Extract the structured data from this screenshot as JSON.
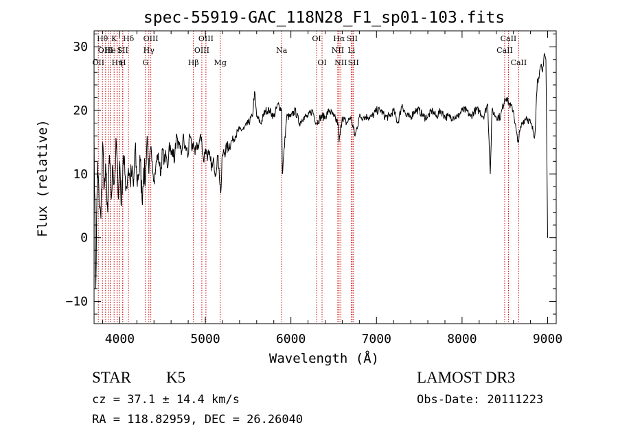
{
  "chart_data": {
    "type": "line",
    "title": "spec-55919-GAC_118N28_F1_sp01-103.fits",
    "xlabel": "Wavelength (Å)",
    "ylabel": "Flux (relative)",
    "xlim": [
      3700,
      9100
    ],
    "ylim": [
      -13.5,
      32.5
    ],
    "x_ticks": [
      4000,
      5000,
      6000,
      7000,
      8000,
      9000
    ],
    "x_tick_labels": [
      "4000",
      "5000",
      "6000",
      "7000",
      "8000",
      "9000"
    ],
    "y_ticks": [
      -10,
      0,
      10,
      20,
      30
    ],
    "y_tick_labels": [
      "−10",
      "0",
      "10",
      "20",
      "30"
    ],
    "series": [
      {
        "name": "flux",
        "x": [
          3700,
          3720,
          3740,
          3760,
          3780,
          3800,
          3820,
          3840,
          3860,
          3880,
          3900,
          3920,
          3940,
          3960,
          3980,
          4000,
          4020,
          4040,
          4060,
          4080,
          4100,
          4120,
          4140,
          4160,
          4180,
          4200,
          4220,
          4240,
          4260,
          4280,
          4300,
          4320,
          4340,
          4360,
          4380,
          4400,
          4420,
          4440,
          4460,
          4480,
          4500,
          4520,
          4540,
          4560,
          4580,
          4600,
          4620,
          4640,
          4660,
          4680,
          4700,
          4720,
          4740,
          4760,
          4780,
          4800,
          4820,
          4840,
          4860,
          4880,
          4900,
          4920,
          4940,
          4960,
          4980,
          5000,
          5020,
          5040,
          5060,
          5080,
          5100,
          5120,
          5140,
          5160,
          5180,
          5200,
          5250,
          5300,
          5350,
          5400,
          5450,
          5500,
          5550,
          5575,
          5600,
          5650,
          5700,
          5750,
          5800,
          5850,
          5892,
          5900,
          5950,
          6000,
          6050,
          6100,
          6150,
          6200,
          6250,
          6300,
          6350,
          6400,
          6450,
          6500,
          6550,
          6563,
          6600,
          6650,
          6700,
          6750,
          6800,
          6850,
          6900,
          6950,
          7000,
          7050,
          7100,
          7150,
          7200,
          7250,
          7300,
          7350,
          7400,
          7450,
          7500,
          7550,
          7600,
          7650,
          7700,
          7750,
          7800,
          7850,
          7900,
          7950,
          8000,
          8050,
          8100,
          8150,
          8200,
          8250,
          8300,
          8330,
          8350,
          8400,
          8450,
          8500,
          8520,
          8550,
          8600,
          8650,
          8700,
          8750,
          8800,
          8850,
          8880,
          8900,
          8920,
          8940,
          8960,
          8980,
          9000
        ],
        "values": [
          16,
          -8,
          12,
          5,
          3,
          15,
          8,
          10,
          4,
          13,
          6,
          11,
          9,
          15,
          7,
          12,
          5,
          13,
          10,
          8,
          11,
          9,
          10,
          8,
          14,
          9,
          10,
          12,
          6,
          11,
          9,
          16,
          10,
          14,
          12,
          9,
          11,
          13,
          12,
          10,
          14,
          12,
          13,
          11,
          15,
          13,
          14,
          12,
          16,
          14,
          15,
          13,
          16,
          14,
          14,
          13,
          16,
          14,
          15,
          13,
          15,
          14,
          16,
          15,
          12,
          14,
          13,
          13,
          12,
          11,
          12,
          10,
          13,
          11,
          7,
          13,
          14,
          15,
          16,
          17,
          17,
          18,
          19,
          23,
          19,
          18,
          20,
          20,
          19,
          21,
          20,
          10,
          19,
          19,
          20,
          18,
          19,
          19,
          20,
          18,
          19,
          19,
          20,
          19,
          18,
          15,
          19,
          18,
          19,
          16,
          19,
          19,
          19,
          19,
          20,
          20,
          19,
          19,
          20,
          18,
          21,
          19,
          19,
          20,
          20,
          19,
          19,
          20,
          19,
          20,
          19,
          19,
          19,
          19,
          20,
          20,
          19,
          20,
          20,
          19,
          21,
          10,
          20,
          19,
          19,
          22,
          22,
          21,
          20,
          15,
          18,
          19,
          18,
          16,
          25,
          25,
          27,
          26,
          29,
          28,
          0
        ]
      }
    ],
    "lines": [
      {
        "x": 3750,
        "label": "OII",
        "row": 2
      },
      {
        "x": 3798,
        "label": "Hθ",
        "row": 0
      },
      {
        "x": 3835,
        "label": "OIII",
        "row": 1
      },
      {
        "x": 3868,
        "label": "",
        "row": 1
      },
      {
        "x": 3889,
        "label": "He",
        "row": 1
      },
      {
        "x": 3934,
        "label": "K",
        "row": 0
      },
      {
        "x": 3970,
        "label": "Hη",
        "row": 2
      },
      {
        "x": 3968,
        "label": "",
        "row": 0
      },
      {
        "x": 4000,
        "label": "I",
        "row": 1
      },
      {
        "x": 4035,
        "label": "SII",
        "row": 1
      },
      {
        "x": 4035,
        "label": "H",
        "row": 2
      },
      {
        "x": 4102,
        "label": "Hδ",
        "row": 0
      },
      {
        "x": 4300,
        "label": "G",
        "row": 2
      },
      {
        "x": 4340,
        "label": "Hγ",
        "row": 1
      },
      {
        "x": 4363,
        "label": "OIII",
        "row": 0
      },
      {
        "x": 4861,
        "label": "Hβ",
        "row": 2
      },
      {
        "x": 4959,
        "label": "OIII",
        "row": 1
      },
      {
        "x": 5007,
        "label": "OIII",
        "row": 0
      },
      {
        "x": 5175,
        "label": "Mg",
        "row": 2
      },
      {
        "x": 5892,
        "label": "Na",
        "row": 1
      },
      {
        "x": 6300,
        "label": "OI",
        "row": 0
      },
      {
        "x": 6364,
        "label": "OI",
        "row": 2
      },
      {
        "x": 6548,
        "label": "NII",
        "row": 1
      },
      {
        "x": 6563,
        "label": "Hα",
        "row": 0
      },
      {
        "x": 6583,
        "label": "NII",
        "row": 2
      },
      {
        "x": 6707,
        "label": "Li",
        "row": 1
      },
      {
        "x": 6716,
        "label": "SII",
        "row": 0
      },
      {
        "x": 6731,
        "label": "SII",
        "row": 2
      },
      {
        "x": 8498,
        "label": "CaII",
        "row": 1
      },
      {
        "x": 8542,
        "label": "CaII",
        "row": 0
      },
      {
        "x": 8662,
        "label": "CaII",
        "row": 2
      }
    ],
    "colors": {
      "axes": "#000000",
      "spectrum": "#000000",
      "line_markers": "#cc0000"
    }
  },
  "info": {
    "object_class": "STAR",
    "subclass": "K5",
    "survey": "LAMOST DR3",
    "redshift_text": "cz = 37.1 ± 14.4 km/s",
    "obs_date_text": "Obs-Date: 20111223",
    "coords_text": "RA = 118.82959, DEC =  26.26040"
  }
}
